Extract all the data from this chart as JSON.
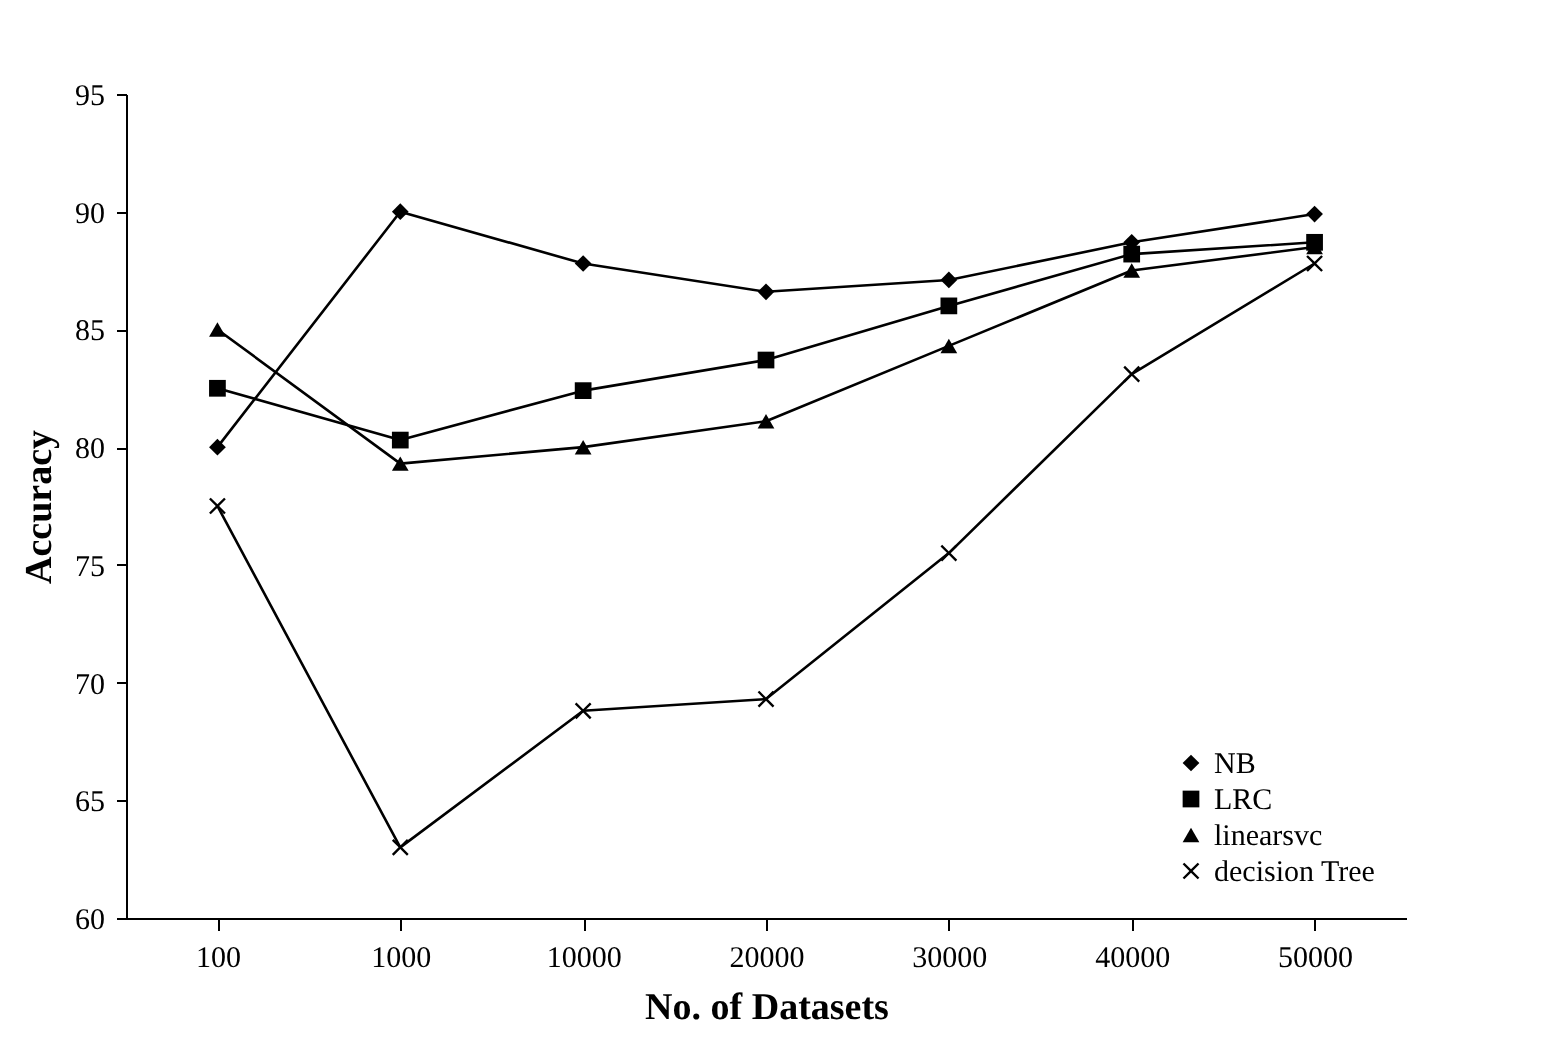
{
  "chart_data": {
    "type": "line",
    "xlabel": "No. of Datasets",
    "ylabel": "Accuracy",
    "categories": [
      "100",
      "1000",
      "10000",
      "20000",
      "30000",
      "40000",
      "50000"
    ],
    "ylim": [
      60,
      95
    ],
    "yticks": [
      60,
      65,
      70,
      75,
      80,
      85,
      90,
      95
    ],
    "grid": false,
    "legend": "bottom right",
    "line_style": "solid",
    "series": [
      {
        "name": "NB",
        "color": "#000000",
        "marker": "diamond",
        "values": [
          80,
          90,
          87.8,
          86.6,
          87.1,
          88.7,
          89.9
        ]
      },
      {
        "name": "LRC",
        "color": "#000000",
        "marker": "square",
        "values": [
          82.5,
          80.3,
          82.4,
          83.7,
          86.0,
          88.2,
          88.7
        ]
      },
      {
        "name": "linearsvc",
        "color": "#000000",
        "marker": "triangle",
        "values": [
          85,
          79.3,
          80,
          81.1,
          84.3,
          87.5,
          88.5
        ]
      },
      {
        "name": "decision Tree",
        "color": "#000000",
        "marker": "cross",
        "values": [
          77.5,
          63,
          68.8,
          69.3,
          75.5,
          83.1,
          87.8
        ]
      }
    ]
  }
}
